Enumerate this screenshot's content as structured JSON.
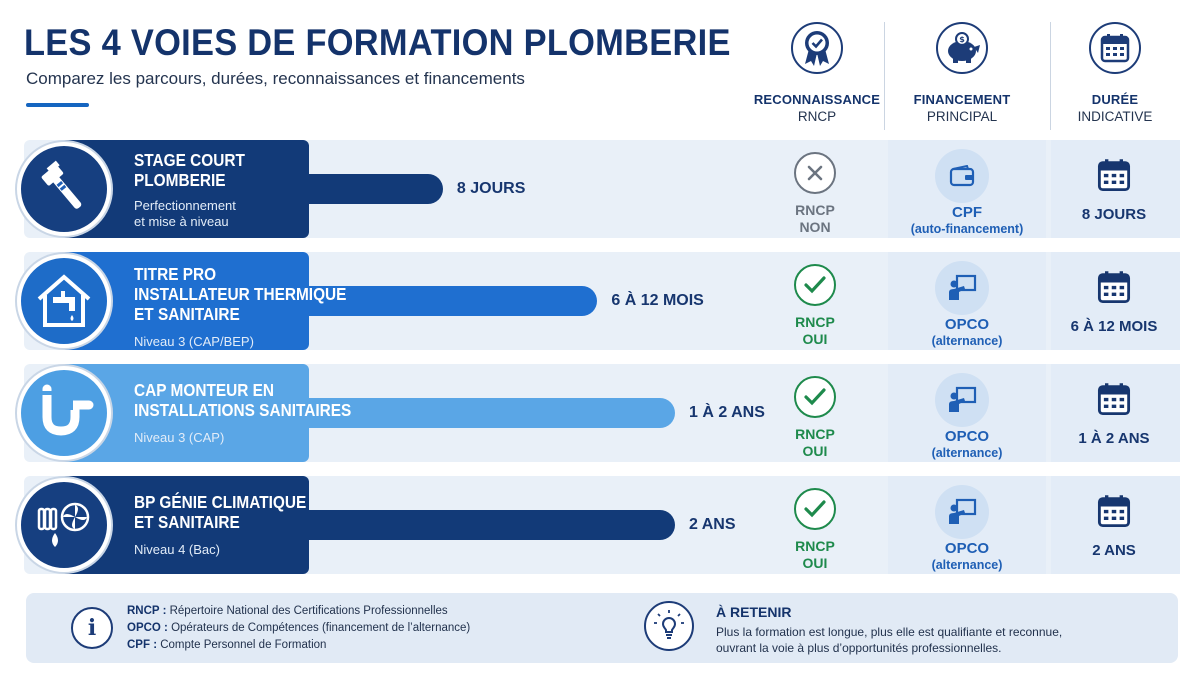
{
  "header": {
    "title": "LES 4 VOIES DE FORMATION PLOMBERIE",
    "subtitle": "Comparez les parcours, durées, reconnaissances et financements"
  },
  "columns": [
    {
      "line1": "RECONNAISSANCE",
      "line2": "RNCP",
      "icon": "award-ribbon-icon"
    },
    {
      "line1": "FINANCEMENT",
      "line2": "PRINCIPAL",
      "icon": "piggy-bank-icon"
    },
    {
      "line1": "DURÉE",
      "line2": "INDICATIVE",
      "icon": "calendar-icon"
    }
  ],
  "colors": {
    "navy": "#123a78",
    "blue": "#1f6fd0",
    "light_blue": "#4d9fe3",
    "green": "#1e8a4c",
    "gray": "#6b7480"
  },
  "chart_data": {
    "type": "bar",
    "unit": "mois",
    "categories": [
      "STAGE COURT PLOMBERIE",
      "TITRE PRO INSTALLATEUR THERMIQUE ET SANITAIRE",
      "CAP MONTEUR EN INSTALLATIONS SANITAIRES",
      "BP GÉNIE CLIMATIQUE ET SANITAIRE"
    ],
    "values": [
      0.37,
      12,
      24,
      24
    ],
    "value_labels": [
      "8 JOURS",
      "6 À 12 MOIS",
      "1 À 2 ANS",
      "2 ANS"
    ],
    "bar_colors": [
      "#123a78",
      "#1f6fd0",
      "#5aa6e6",
      "#123a78"
    ]
  },
  "rows": [
    {
      "title_lines": [
        "STAGE COURT",
        "PLOMBERIE"
      ],
      "sub_lines": [
        "Perfectionnement",
        "et mise à niveau"
      ],
      "label_color": "#123a78",
      "icon": "wrench-icon",
      "rncp_status": "RNCP",
      "rncp_value": "NON",
      "rncp_ok": false,
      "fin_name": "CPF",
      "fin_detail": "(auto-financement)",
      "fin_icon": "wallet-icon",
      "duration": "8 JOURS"
    },
    {
      "title_lines": [
        "TITRE PRO",
        "INSTALLATEUR THERMIQUE",
        "ET SANITAIRE"
      ],
      "sub_lines": [
        "Niveau 3 (CAP/BEP)"
      ],
      "label_color": "#1f6fd0",
      "icon": "house-faucet-icon",
      "rncp_status": "RNCP",
      "rncp_value": "OUI",
      "rncp_ok": true,
      "fin_name": "OPCO",
      "fin_detail": "(alternance)",
      "fin_icon": "presentation-board-icon",
      "duration": "6 À 12 MOIS"
    },
    {
      "title_lines": [
        "CAP MONTEUR EN",
        "INSTALLATIONS SANITAIRES"
      ],
      "sub_lines": [
        "Niveau 3 (CAP)"
      ],
      "label_color": "#5aa6e6",
      "icon": "pipe-trap-icon",
      "rncp_status": "RNCP",
      "rncp_value": "OUI",
      "rncp_ok": true,
      "fin_name": "OPCO",
      "fin_detail": "(alternance)",
      "fin_icon": "presentation-board-icon",
      "duration": "1 À 2 ANS"
    },
    {
      "title_lines": [
        "BP GÉNIE CLIMATIQUE",
        "ET SANITAIRE"
      ],
      "sub_lines": [
        "Niveau 4 (Bac)"
      ],
      "label_color": "#123a78",
      "icon": "radiator-fan-drop-icon",
      "rncp_status": "RNCP",
      "rncp_value": "OUI",
      "rncp_ok": true,
      "fin_name": "OPCO",
      "fin_detail": "(alternance)",
      "fin_icon": "presentation-board-icon",
      "duration": "2 ANS"
    }
  ],
  "footer": {
    "glossary": [
      {
        "term": "RNCP :",
        "definition": "Répertoire National des Certifications Professionnelles"
      },
      {
        "term": "OPCO :",
        "definition": "Opérateurs de Compétences (financement de l’alternance)"
      },
      {
        "term": "CPF :",
        "definition": "Compte Personnel de Formation"
      }
    ],
    "info_glyph": "i",
    "retain_title": "À RETENIR",
    "retain_lines": [
      "Plus la formation est longue, plus elle est qualifiante et reconnue,",
      "ouvrant la voie à plus d’opportunités professionnelles."
    ]
  }
}
